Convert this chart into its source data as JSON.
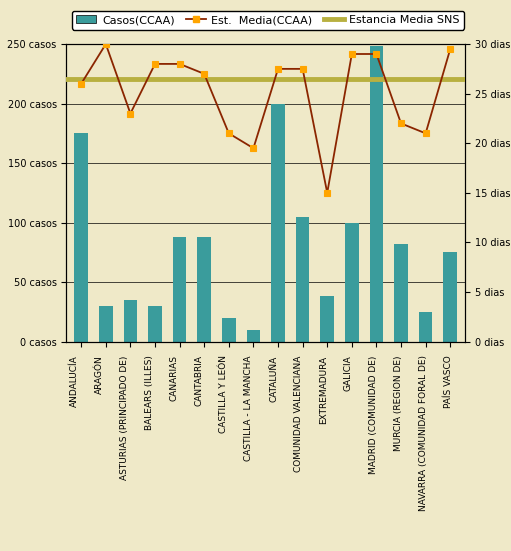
{
  "categories": [
    "ANDALUCÍA",
    "ARAGÓN",
    "ASTURIAS (PRINCIPADO DE)",
    "BALEARS (ILLES)",
    "CANARIAS",
    "CANTABRIA",
    "CASTILLA Y LEÓN",
    "CASTILLA - LA MANCHA",
    "CATALUÑA",
    "COMUNIDAD VALENCIANA",
    "EXTREMADURA",
    "GALICIA",
    "MADRID (COMUNIDAD DE)",
    "MURCIA (REGION DE)",
    "NAVARRA (COMUNIDAD FORAL DE)",
    "PAÍS VASCO"
  ],
  "bar_values": [
    175,
    30,
    35,
    30,
    88,
    88,
    20,
    10,
    200,
    105,
    38,
    100,
    248,
    82,
    25,
    75
  ],
  "line_values": [
    26,
    30,
    23,
    28,
    28,
    27,
    21,
    19.5,
    27.5,
    27.5,
    15,
    29,
    29,
    22,
    21,
    29.5
  ],
  "sns_value": 26.5,
  "bar_color": "#3A9C9C",
  "line_color": "#8B2500",
  "marker_facecolor": "#FFA500",
  "marker_edgecolor": "#FFA500",
  "sns_color": "#B8B040",
  "background_color": "#EFE9C8",
  "plot_bg_color": "#EFE9C8",
  "ylim_left": [
    0,
    250
  ],
  "ylim_right": [
    0,
    30
  ],
  "yticks_left": [
    0,
    50,
    100,
    150,
    200,
    250
  ],
  "yticks_right": [
    0,
    5,
    10,
    15,
    20,
    25,
    30
  ],
  "ytick_labels_left": [
    "0 casos",
    "50 casos",
    "100 casos",
    "150 casos",
    "200 casos",
    "250 casos"
  ],
  "ytick_labels_right": [
    "0 dias",
    "5 dias",
    "10 dias",
    "15 dias",
    "20 dias",
    "25 dias",
    "30 dias"
  ],
  "legend_bar": "Casos(CCAA)",
  "legend_line": "Est.  Media(CCAA)",
  "legend_sns": "Estancia Media SNS",
  "tick_fontsize": 7,
  "legend_fontsize": 8,
  "bar_width": 0.55
}
